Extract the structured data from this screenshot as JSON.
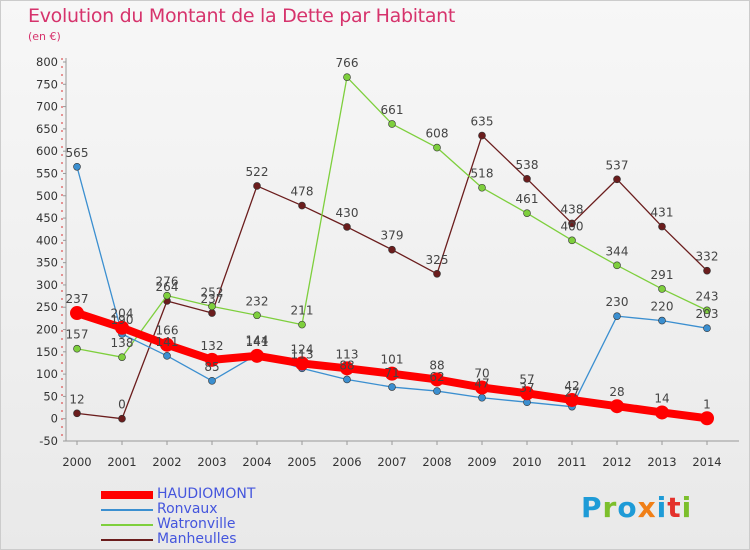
{
  "header": {
    "title": "Evolution du Montant de la Dette par Habitant",
    "unit": "(en €)"
  },
  "logo": {
    "text": "Proxiti",
    "letter_colors": [
      "#1e9bd7",
      "#7cbf2c",
      "#1e9bd7",
      "#f07f17",
      "#1e9bd7",
      "#e4312b",
      "#7cbf2c"
    ]
  },
  "chart_data": {
    "type": "line",
    "categories": [
      "2000",
      "2001",
      "2002",
      "2003",
      "2004",
      "2005",
      "2006",
      "2007",
      "2008",
      "2009",
      "2010",
      "2011",
      "2012",
      "2013",
      "2014"
    ],
    "ylim": [
      -50,
      800
    ],
    "yticks": [
      -50,
      0,
      50,
      100,
      150,
      200,
      250,
      300,
      350,
      400,
      450,
      500,
      550,
      600,
      650,
      700,
      750,
      800
    ],
    "grid": false,
    "legend_position": "bottom-left",
    "series": [
      {
        "name": "HAUDIOMONT",
        "color": "#ff0000",
        "values": [
          237,
          204,
          166,
          132,
          141,
          124,
          113,
          101,
          88,
          70,
          57,
          42,
          28,
          14,
          1
        ]
      },
      {
        "name": "Ronvaux",
        "color": "#3b8fd0",
        "values": [
          565,
          190,
          141,
          85,
          144,
          113,
          88,
          71,
          62,
          47,
          37,
          27,
          230,
          220,
          203
        ]
      },
      {
        "name": "Watronville",
        "color": "#7ecf3d",
        "values": [
          157,
          138,
          276,
          252,
          232,
          211,
          766,
          661,
          608,
          518,
          461,
          400,
          344,
          291,
          243
        ]
      },
      {
        "name": "Manheulles",
        "color": "#6b1d1d",
        "values": [
          12,
          0,
          264,
          237,
          522,
          478,
          430,
          379,
          325,
          635,
          538,
          438,
          537,
          431,
          332
        ]
      }
    ]
  }
}
